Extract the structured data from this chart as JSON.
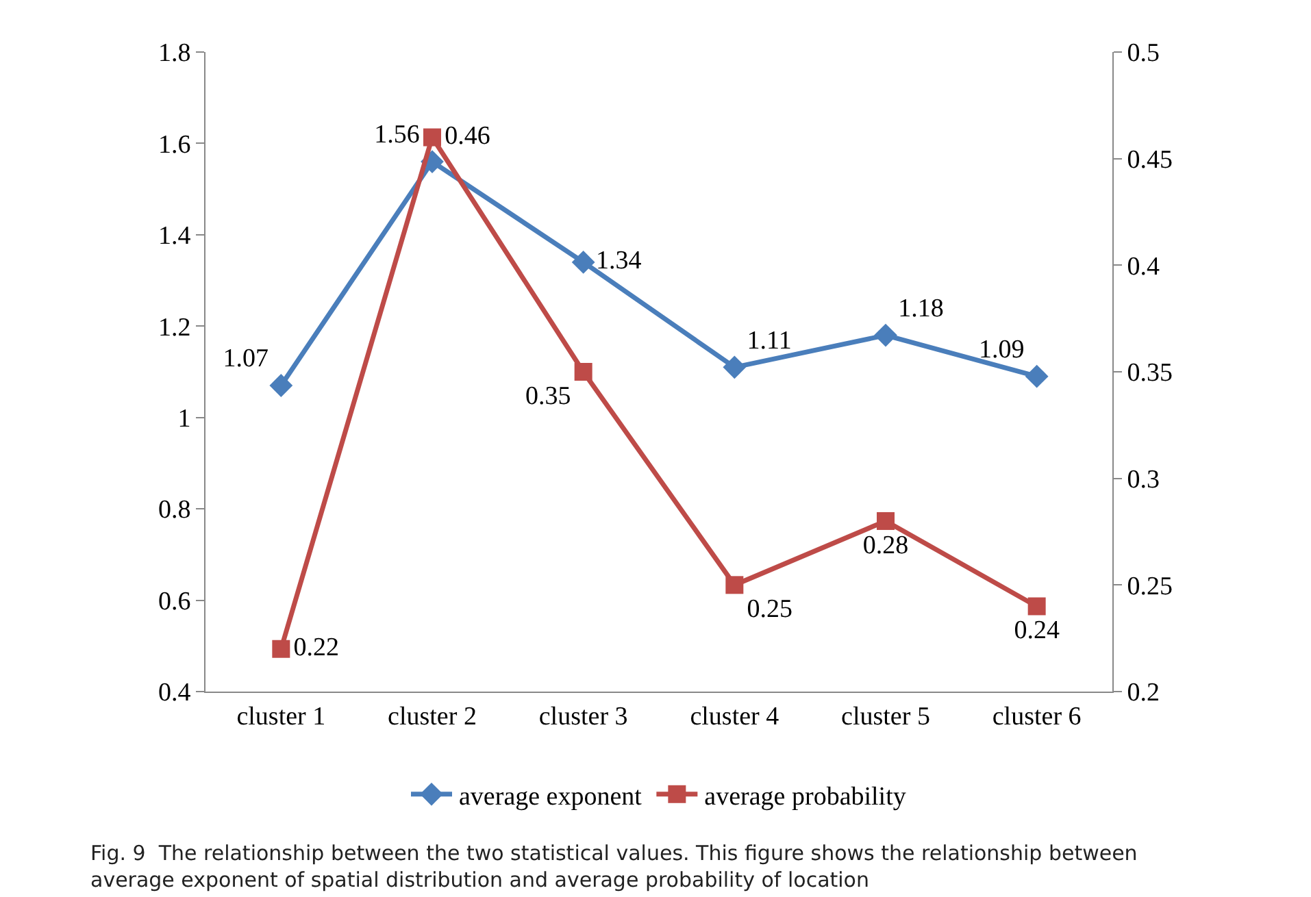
{
  "chart_data": {
    "type": "line",
    "categories": [
      "cluster 1",
      "cluster 2",
      "cluster 3",
      "cluster 4",
      "cluster 5",
      "cluster 6"
    ],
    "series": [
      {
        "name": "average exponent",
        "color": "#4a7ebb",
        "values": [
          1.07,
          1.56,
          1.34,
          1.11,
          1.18,
          1.09
        ],
        "marker": "diamond"
      },
      {
        "name": "average probability",
        "color": "#be4b48",
        "values": [
          0.22,
          0.46,
          0.35,
          0.25,
          0.28,
          0.24
        ],
        "axis": "y2",
        "marker": "square"
      }
    ],
    "ylim": [
      0.4,
      1.8
    ],
    "yticks": [
      0.4,
      0.6,
      0.8,
      1,
      1.2,
      1.4,
      1.6,
      1.8
    ],
    "y2lim": [
      0.2,
      0.5
    ],
    "y2ticks": [
      0.2,
      0.25,
      0.3,
      0.35,
      0.4,
      0.45,
      0.5
    ],
    "data_labels": true,
    "grid": false,
    "legend": "bottom",
    "line_style": "solid",
    "annotations": [
      "Fig. 9  The relationship between the two statistical values. This figure shows the relationship between average exponent of spatial distribution and average probability of location"
    ]
  }
}
